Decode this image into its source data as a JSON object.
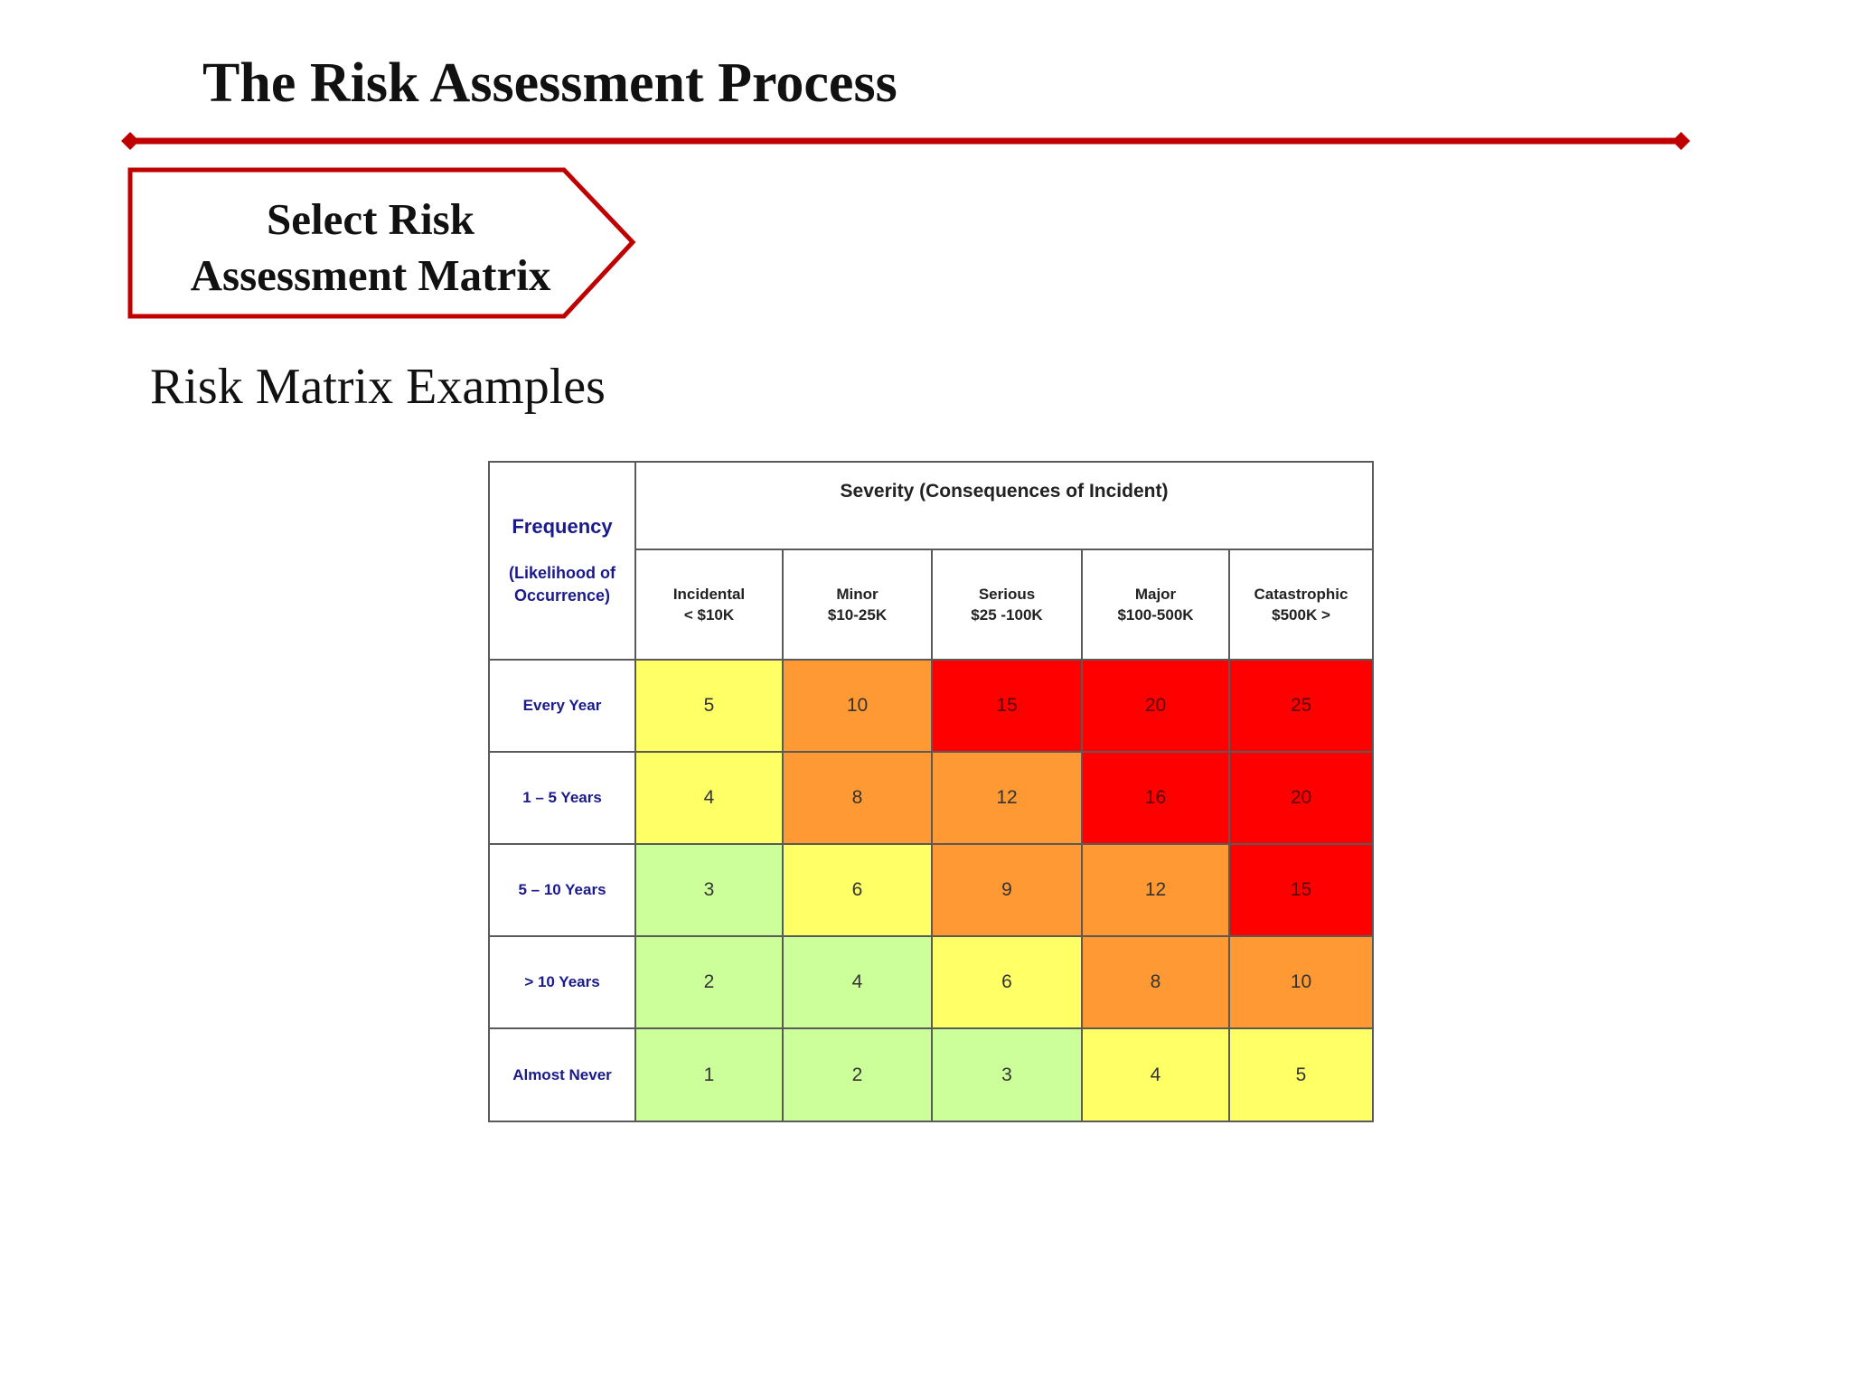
{
  "slide": {
    "title": "The Risk Assessment Process",
    "step_badge": {
      "line1": "Select Risk",
      "line2": "Assessment Matrix"
    },
    "section_heading": "Risk Matrix Examples",
    "accent_color": "#c00000"
  },
  "matrix": {
    "frequency_header": "Frequency",
    "frequency_subheader": "(Likelihood of Occurrence)",
    "severity_header": "Severity (Consequences of Incident)",
    "severity_columns": [
      {
        "name": "Incidental",
        "range": "< $10K"
      },
      {
        "name": "Minor",
        "range": "$10-25K"
      },
      {
        "name": "Serious",
        "range": "$25 -100K"
      },
      {
        "name": "Major",
        "range": "$100-500K"
      },
      {
        "name": "Catastrophic",
        "range": "$500K >"
      }
    ],
    "rows": [
      {
        "label": "Every Year",
        "values": [
          "5",
          "10",
          "15",
          "20",
          "25"
        ],
        "levels": [
          2,
          3,
          4,
          4,
          4
        ]
      },
      {
        "label": "1 – 5 Years",
        "values": [
          "4",
          "8",
          "12",
          "16",
          "20"
        ],
        "levels": [
          2,
          3,
          3,
          4,
          4
        ]
      },
      {
        "label": "5 – 10 Years",
        "values": [
          "3",
          "6",
          "9",
          "12",
          "15"
        ],
        "levels": [
          1,
          2,
          3,
          3,
          4
        ]
      },
      {
        "label": "> 10 Years",
        "values": [
          "2",
          "4",
          "6",
          "8",
          "10"
        ],
        "levels": [
          1,
          1,
          2,
          3,
          3
        ]
      },
      {
        "label": "Almost Never",
        "values": [
          "1",
          "2",
          "3",
          "4",
          "5"
        ],
        "levels": [
          1,
          1,
          1,
          2,
          2
        ]
      }
    ],
    "level_colors": {
      "1": "#ccff99",
      "2": "#ffff66",
      "3": "#ff9933",
      "4": "#ff0000"
    },
    "header_text_color": "#1a1a8c"
  }
}
